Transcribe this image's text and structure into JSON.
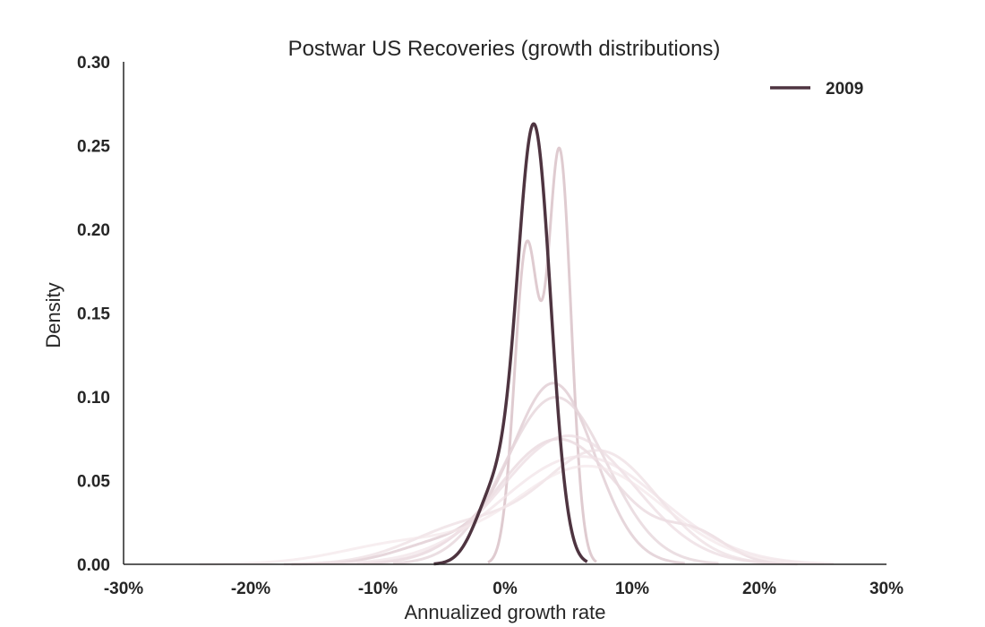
{
  "chart_data": {
    "type": "line",
    "title": "Postwar US Recoveries (growth distributions)",
    "xlabel": "Annualized growth rate",
    "ylabel": "Density",
    "xlim": [
      -30,
      30
    ],
    "ylim": [
      0,
      0.3
    ],
    "x_ticks": [
      -30,
      -20,
      -10,
      0,
      10,
      20,
      30
    ],
    "x_tick_labels": [
      "-30%",
      "-20%",
      "-10%",
      "0%",
      "10%",
      "20%",
      "30%"
    ],
    "y_ticks": [
      0,
      0.05,
      0.1,
      0.15,
      0.2,
      0.25,
      0.3
    ],
    "y_tick_labels": [
      "0.00",
      "0.05",
      "0.10",
      "0.15",
      "0.20",
      "0.25",
      "0.30"
    ],
    "grid": false,
    "legend": {
      "placement": "top-right",
      "entries": [
        "2009"
      ]
    },
    "highlight_color": "#4e3440",
    "background_color": "#e7d3d9",
    "series": [
      {
        "name": "2009",
        "highlight": true,
        "color": "#4e3440",
        "opacity": 1,
        "components": [
          [
            2.3,
            1.3,
            0.84
          ],
          [
            -0.8,
            1.5,
            0.16
          ]
        ]
      },
      {
        "highlight": false,
        "color": "#d9c2c8",
        "opacity": 0.85,
        "components": [
          [
            1.7,
            0.95,
            0.45
          ],
          [
            4.3,
            0.9,
            0.55
          ]
        ]
      },
      {
        "highlight": false,
        "color": "#e2cfd5",
        "opacity": 0.85,
        "components": [
          [
            3.9,
            3.2,
            0.85
          ],
          [
            -4,
            4,
            0.15
          ]
        ]
      },
      {
        "highlight": false,
        "color": "#e6d6db",
        "opacity": 0.8,
        "components": [
          [
            4,
            4,
            1.0
          ]
        ]
      },
      {
        "highlight": false,
        "color": "#ead9de",
        "opacity": 0.8,
        "components": [
          [
            4.2,
            4.8,
            0.9
          ],
          [
            15,
            2.5,
            0.1
          ]
        ]
      },
      {
        "highlight": false,
        "color": "#ecdce1",
        "opacity": 0.75,
        "components": [
          [
            5,
            5.2,
            1.0
          ]
        ]
      },
      {
        "highlight": false,
        "color": "#eedfe3",
        "opacity": 0.75,
        "components": [
          [
            7.5,
            4.5,
            0.75
          ],
          [
            -3,
            4.5,
            0.25
          ]
        ]
      },
      {
        "highlight": false,
        "color": "#f1e3e7",
        "opacity": 0.7,
        "components": [
          [
            6,
            6.2,
            1.0
          ]
        ]
      },
      {
        "highlight": false,
        "color": "#f3e7ea",
        "opacity": 0.7,
        "components": [
          [
            6.5,
            5.8,
            0.85
          ],
          [
            -8,
            5,
            0.15
          ]
        ]
      }
    ]
  }
}
